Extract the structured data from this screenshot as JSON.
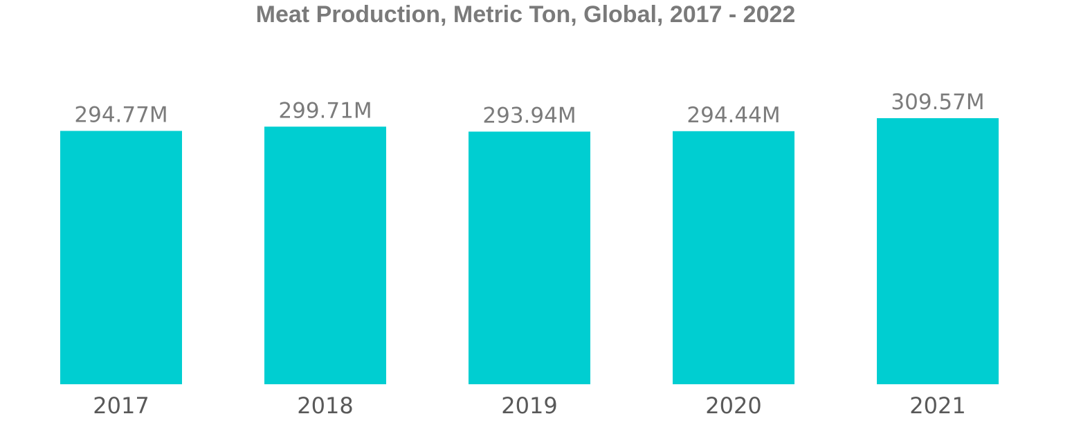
{
  "chart_data": {
    "type": "bar",
    "title": "Meat Production, Metric Ton, Global, 2017 - 2022",
    "categories": [
      "2017",
      "2018",
      "2019",
      "2020",
      "2021"
    ],
    "values": [
      294.77,
      299.71,
      293.94,
      294.44,
      309.57
    ],
    "value_labels": [
      "294.77M",
      "299.71M",
      "293.94M",
      "294.44M",
      "309.57M"
    ],
    "units": "M",
    "ylim": [
      0,
      309.57
    ],
    "grid": false,
    "legend": "none",
    "bar_color": "#00CED1"
  }
}
